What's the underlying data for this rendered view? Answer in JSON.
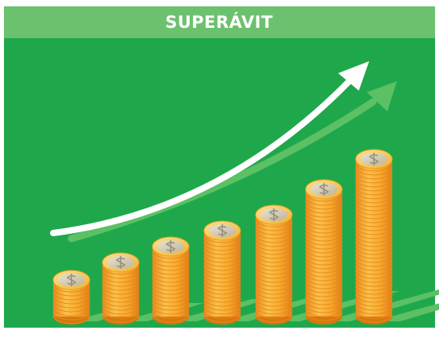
{
  "title": "SUPERÁVIT"
}
